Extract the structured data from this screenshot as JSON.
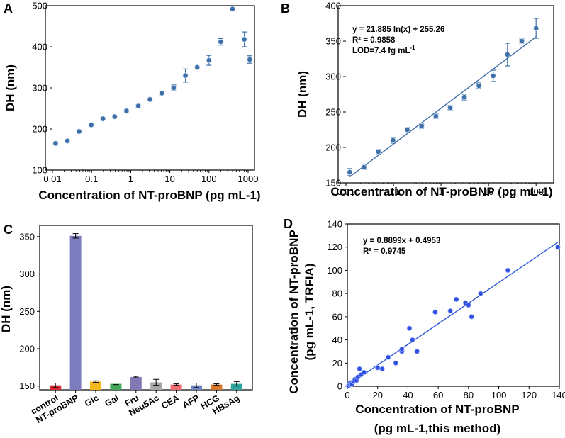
{
  "chart_data": [
    {
      "panel": "A",
      "type": "scatter",
      "xlabel": "Concentration of NT-proBNP (pg mL-1)",
      "ylabel": "DH (nm)",
      "xscale": "log",
      "xlim": [
        0.01,
        1000
      ],
      "ylim": [
        100,
        500
      ],
      "xticks": [
        "0.01",
        "0.1",
        "1",
        "10",
        "100",
        "1000"
      ],
      "yticks": [
        "100",
        "200",
        "300",
        "400",
        "500"
      ],
      "points": [
        {
          "x": 0.012,
          "y": 165,
          "err": 3
        },
        {
          "x": 0.024,
          "y": 171,
          "err": 3
        },
        {
          "x": 0.048,
          "y": 194,
          "err": 3
        },
        {
          "x": 0.098,
          "y": 210,
          "err": 4
        },
        {
          "x": 0.195,
          "y": 225,
          "err": 3
        },
        {
          "x": 0.39,
          "y": 230,
          "err": 3
        },
        {
          "x": 0.78,
          "y": 244,
          "err": 3
        },
        {
          "x": 1.56,
          "y": 256,
          "err": 3
        },
        {
          "x": 3.1,
          "y": 272,
          "err": 3
        },
        {
          "x": 6.25,
          "y": 287,
          "err": 4
        },
        {
          "x": 12.5,
          "y": 300,
          "err": 7
        },
        {
          "x": 25,
          "y": 330,
          "err": 16
        },
        {
          "x": 50,
          "y": 350,
          "err": 3
        },
        {
          "x": 100,
          "y": 367,
          "err": 12
        },
        {
          "x": 200,
          "y": 412,
          "err": 8
        },
        {
          "x": 400,
          "y": 492,
          "err": 3
        },
        {
          "x": 800,
          "y": 418,
          "err": 18
        },
        {
          "x": 1100,
          "y": 369,
          "err": 9
        }
      ]
    },
    {
      "panel": "B",
      "type": "scatter",
      "xlabel": "Concentration of NT-proBNP (pg mL-1)",
      "ylabel": "DH (nm)",
      "xscale": "log",
      "xlim": [
        0.01,
        150
      ],
      "ylim": [
        150,
        400
      ],
      "xticks": [
        "0.01",
        "0.1",
        "1",
        "10",
        "100"
      ],
      "yticks": [
        "150",
        "200",
        "250",
        "300",
        "350",
        "400"
      ],
      "fit": {
        "equation": "y = 21.885 ln(x) + 255.26",
        "r2": "R² = 0.9858",
        "lod": "LOD=7.4 fg mL",
        "lod_sup": "-1",
        "slope": 21.885,
        "intercept": 255.26,
        "x_range": [
          0.012,
          100
        ]
      },
      "points": [
        {
          "x": 0.012,
          "y": 165,
          "err": 5
        },
        {
          "x": 0.024,
          "y": 172,
          "err": 3
        },
        {
          "x": 0.048,
          "y": 194,
          "err": 3
        },
        {
          "x": 0.098,
          "y": 210,
          "err": 4
        },
        {
          "x": 0.195,
          "y": 225,
          "err": 3
        },
        {
          "x": 0.39,
          "y": 230,
          "err": 3
        },
        {
          "x": 0.78,
          "y": 244,
          "err": 3
        },
        {
          "x": 1.56,
          "y": 256,
          "err": 3
        },
        {
          "x": 3.1,
          "y": 271,
          "err": 4
        },
        {
          "x": 6.25,
          "y": 287,
          "err": 4
        },
        {
          "x": 12.5,
          "y": 301,
          "err": 8
        },
        {
          "x": 25,
          "y": 331,
          "err": 16
        },
        {
          "x": 50,
          "y": 350,
          "err": 3
        },
        {
          "x": 100,
          "y": 368,
          "err": 14
        }
      ]
    },
    {
      "panel": "C",
      "type": "bar",
      "ylabel": "DH (nm)",
      "ylim": [
        145,
        365
      ],
      "yticks": [
        "150",
        "200",
        "250",
        "300",
        "350"
      ],
      "categories": [
        "control",
        "NT-proBNP",
        "Glc",
        "Gal",
        "Fru",
        "Neu5Ac",
        "CEA",
        "AFP",
        "HCG",
        "HBsAg"
      ],
      "values": [
        151,
        351,
        156,
        153,
        162,
        155,
        152,
        151,
        152,
        153
      ],
      "errors": [
        3,
        3,
        1,
        1,
        1,
        4,
        1,
        3,
        1,
        3
      ],
      "colors": [
        "#d9282f",
        "#7b7bbe",
        "#f3b81c",
        "#43a85a",
        "#8279b4",
        "#a7a7a7",
        "#f36b6e",
        "#6f86c5",
        "#d9772b",
        "#2fa5a0"
      ]
    },
    {
      "panel": "D",
      "type": "scatter",
      "xlabel": "Concentration of NT-proBNP",
      "xlabel2": "(pg mL-1,this method)",
      "ylabel": "Concentration of NT-proBNP",
      "ylabel2": "(pg mL-1, TRFIA)",
      "xlim": [
        0,
        140
      ],
      "ylim": [
        0,
        140
      ],
      "xticks": [
        "0",
        "20",
        "40",
        "60",
        "80",
        "100",
        "120",
        "140"
      ],
      "yticks": [
        "0",
        "20",
        "40",
        "60",
        "80",
        "100",
        "120",
        "140"
      ],
      "fit": {
        "equation": "y = 0.8899x + 0.4953",
        "r2": "R² = 0.9745",
        "slope": 0.8899,
        "intercept": 0.4953,
        "x_range": [
          0,
          139
        ]
      },
      "points": [
        {
          "x": 0.8,
          "y": 0.5
        },
        {
          "x": 1.5,
          "y": 1.5
        },
        {
          "x": 2,
          "y": 3
        },
        {
          "x": 3,
          "y": 2
        },
        {
          "x": 4,
          "y": 4
        },
        {
          "x": 5,
          "y": 6
        },
        {
          "x": 6,
          "y": 5
        },
        {
          "x": 7,
          "y": 8
        },
        {
          "x": 8,
          "y": 15
        },
        {
          "x": 9,
          "y": 10
        },
        {
          "x": 11,
          "y": 12
        },
        {
          "x": 20,
          "y": 16
        },
        {
          "x": 23,
          "y": 15
        },
        {
          "x": 27,
          "y": 25
        },
        {
          "x": 32,
          "y": 20
        },
        {
          "x": 36,
          "y": 30
        },
        {
          "x": 36,
          "y": 32
        },
        {
          "x": 41,
          "y": 50
        },
        {
          "x": 43,
          "y": 40
        },
        {
          "x": 46,
          "y": 30
        },
        {
          "x": 58,
          "y": 64
        },
        {
          "x": 68,
          "y": 65
        },
        {
          "x": 72,
          "y": 75
        },
        {
          "x": 78,
          "y": 72
        },
        {
          "x": 80,
          "y": 70
        },
        {
          "x": 82,
          "y": 60
        },
        {
          "x": 88,
          "y": 80
        },
        {
          "x": 106,
          "y": 100
        },
        {
          "x": 139,
          "y": 120
        }
      ]
    }
  ],
  "panel_letters": {
    "a": "A",
    "b": "B",
    "c": "C",
    "d": "D"
  },
  "colors": {
    "marker_ab": "#3d6fa8",
    "marker_d": "#2f50e0",
    "fit_line_b": "#3d6fa8",
    "fit_line_d": "#2e5ad6"
  }
}
